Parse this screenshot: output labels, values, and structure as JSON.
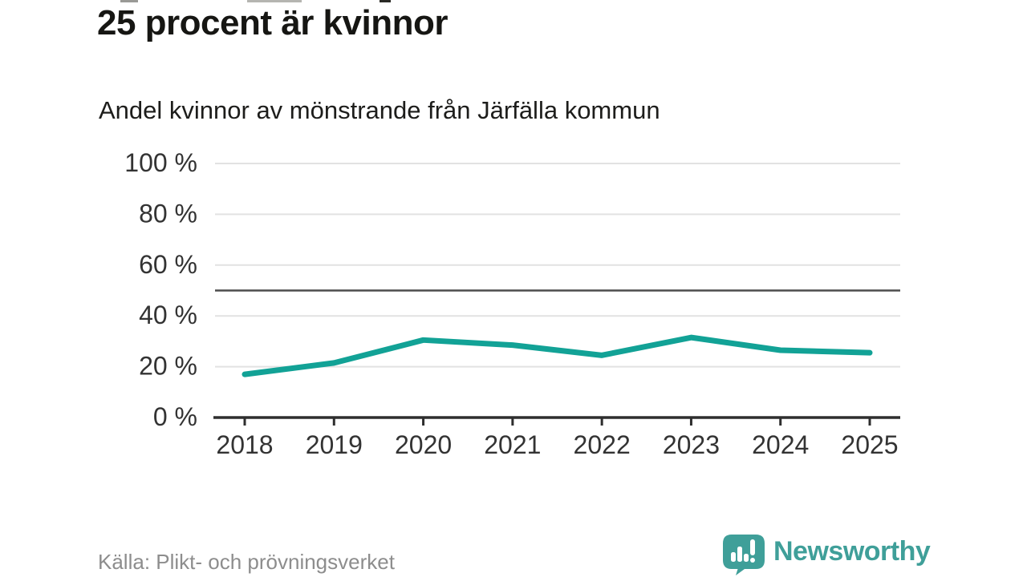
{
  "header": {
    "title": "25 procent är kvinnor",
    "subtitle": "Andel kvinnor av mönstrande från Järfälla kommun"
  },
  "footer": {
    "source": "Källa: Plikt- och prövningsverket",
    "brand_name": "Newsworthy"
  },
  "colors": {
    "line": "#12a296",
    "brand": "#3f9f99",
    "grid": "#e2e2e2",
    "reference_line": "#4d4d4d",
    "axis": "#2e2e2e",
    "tick_label": "#333333",
    "source_text": "#8d8d8d"
  },
  "chart_data": {
    "type": "line",
    "title": "25 procent är kvinnor",
    "subtitle": "Andel kvinnor av mönstrande från Järfälla kommun",
    "categories": [
      "2018",
      "2019",
      "2020",
      "2021",
      "2022",
      "2023",
      "2024",
      "2025"
    ],
    "series": [
      {
        "name": "Andel kvinnor av mönstrande",
        "values": [
          17,
          21.5,
          30.5,
          28.5,
          24.5,
          31.5,
          26.5,
          25.5
        ]
      }
    ],
    "xlabel": "",
    "ylabel": "",
    "ylim": [
      0,
      100
    ],
    "yticks": [
      0,
      20,
      40,
      60,
      80,
      100
    ],
    "ytick_labels": [
      "0 %",
      "20 %",
      "40 %",
      "60 %",
      "80 %",
      "100 %"
    ],
    "reference_line": 50,
    "grid": true,
    "legend": false,
    "source": "Källa: Plikt- och prövningsverket"
  }
}
